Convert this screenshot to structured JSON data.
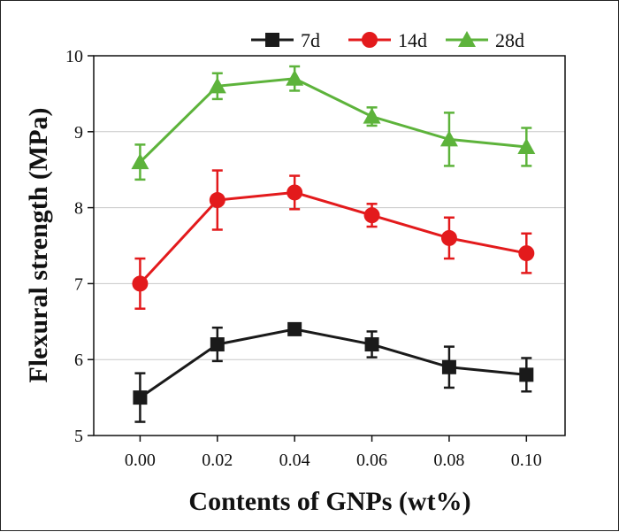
{
  "chart_data": {
    "type": "line",
    "xlabel": "Contents of GNPs (wt%)",
    "ylabel": "Flexural strength (MPa)",
    "x": [
      0.0,
      0.02,
      0.04,
      0.06,
      0.08,
      0.1
    ],
    "x_tick_labels": [
      "0.00",
      "0.02",
      "0.04",
      "0.06",
      "0.08",
      "0.10"
    ],
    "xlim": [
      -0.012,
      0.11
    ],
    "ylim": [
      5,
      10
    ],
    "y_ticks": [
      5,
      6,
      7,
      8,
      9,
      10
    ],
    "grid": "horizontal",
    "legend_position": "top-right",
    "series": [
      {
        "name": "7d",
        "color": "#1a1a1a",
        "marker": "square",
        "values": [
          5.5,
          6.2,
          6.4,
          6.2,
          5.9,
          5.8
        ],
        "errors": [
          0.32,
          0.22,
          0.06,
          0.17,
          0.27,
          0.22
        ]
      },
      {
        "name": "14d",
        "color": "#e31a1c",
        "marker": "circle",
        "values": [
          7.0,
          8.1,
          8.2,
          7.9,
          7.6,
          7.4
        ],
        "errors": [
          0.33,
          0.39,
          0.22,
          0.15,
          0.27,
          0.26
        ]
      },
      {
        "name": "28d",
        "color": "#5db33b",
        "marker": "triangle",
        "values": [
          8.6,
          9.6,
          9.7,
          9.2,
          8.9,
          8.8
        ],
        "errors": [
          0.23,
          0.17,
          0.16,
          0.12,
          0.35,
          0.25
        ]
      }
    ]
  }
}
